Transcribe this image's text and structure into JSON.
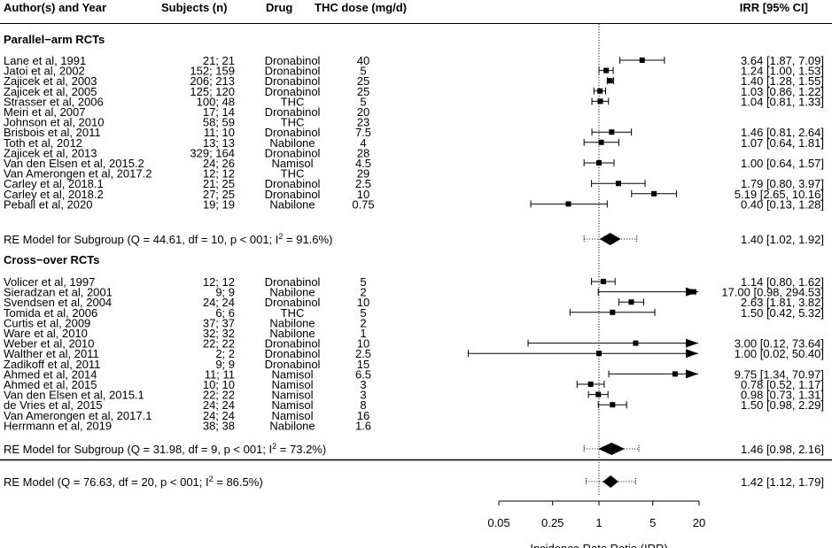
{
  "chart_data": {
    "type": "forest",
    "headers": {
      "study": "Author(s) and Year",
      "subjects": "Subjects (n)",
      "drug": "Drug",
      "dose": "THC dose (mg/d)",
      "estimate": "IRR [95% CI]"
    },
    "x_scale": "log",
    "reference_line": 1,
    "xlim": [
      0.05,
      20
    ],
    "x_ticks": [
      "0.05",
      "0.25",
      "1",
      "5",
      "20"
    ],
    "x_tick_values": [
      0.05,
      0.25,
      1,
      5,
      20
    ],
    "xlabel": "Incidence Rate Ratio (IRR)",
    "subgroups": [
      {
        "name": "Parallel−arm RCTs",
        "studies": [
          {
            "study": "Lane et al, 1991",
            "subjects": "21; 21",
            "drug": "Dronabinol",
            "dose": "40",
            "irr": 3.64,
            "lo": 1.87,
            "hi": 7.09,
            "label": "3.64 [1.87,  7.09]"
          },
          {
            "study": "Jatoi et al, 2002",
            "subjects": "152; 159",
            "drug": "Dronabinol",
            "dose": "5",
            "irr": 1.24,
            "lo": 1.0,
            "hi": 1.53,
            "label": "1.24 [1.00,  1.53]"
          },
          {
            "study": "Zajicek et al, 2003",
            "subjects": "206; 213",
            "drug": "Dronabinol",
            "dose": "25",
            "irr": 1.4,
            "lo": 1.28,
            "hi": 1.55,
            "label": "1.40 [1.28,  1.55]"
          },
          {
            "study": "Zajicek et al, 2005",
            "subjects": "125; 120",
            "drug": "Dronabinol",
            "dose": "25",
            "irr": 1.03,
            "lo": 0.86,
            "hi": 1.22,
            "label": "1.03 [0.86,  1.22]"
          },
          {
            "study": "Strasser et al, 2006",
            "subjects": "100; 48",
            "drug": "THC",
            "dose": "5",
            "irr": 1.04,
            "lo": 0.81,
            "hi": 1.33,
            "label": "1.04 [0.81,  1.33]"
          },
          {
            "study": "Meiri et al, 2007",
            "subjects": "17; 14",
            "drug": "Dronabinol",
            "dose": "20",
            "irr": null,
            "lo": null,
            "hi": null,
            "label": ""
          },
          {
            "study": "Johnson et al, 2010",
            "subjects": "58; 59",
            "drug": "THC",
            "dose": "23",
            "irr": null,
            "lo": null,
            "hi": null,
            "label": ""
          },
          {
            "study": "Brisbois et al, 2011",
            "subjects": "11; 10",
            "drug": "Dronabinol",
            "dose": "7.5",
            "irr": 1.46,
            "lo": 0.81,
            "hi": 2.64,
            "label": "1.46 [0.81,  2.64]"
          },
          {
            "study": "Toth et al, 2012",
            "subjects": "13; 13",
            "drug": "Nabilone",
            "dose": "4",
            "irr": 1.07,
            "lo": 0.64,
            "hi": 1.81,
            "label": "1.07 [0.64,  1.81]"
          },
          {
            "study": "Zajicek et al, 2013",
            "subjects": "329; 164",
            "drug": "Dronabinol",
            "dose": "28",
            "irr": null,
            "lo": null,
            "hi": null,
            "label": ""
          },
          {
            "study": "Van den Elsen et al, 2015.2",
            "subjects": "24; 26",
            "drug": "Namisol",
            "dose": "4.5",
            "irr": 1.0,
            "lo": 0.64,
            "hi": 1.57,
            "label": "1.00 [0.64,  1.57]"
          },
          {
            "study": "Van Amerongen et al, 2017.2",
            "subjects": "12; 12",
            "drug": "THC",
            "dose": "29",
            "irr": null,
            "lo": null,
            "hi": null,
            "label": ""
          },
          {
            "study": "Carley et al, 2018.1",
            "subjects": "21; 25",
            "drug": "Dronabinol",
            "dose": "2.5",
            "irr": 1.79,
            "lo": 0.8,
            "hi": 3.97,
            "label": "1.79 [0.80,  3.97]"
          },
          {
            "study": "Carley et al, 2018.2",
            "subjects": "27; 25",
            "drug": "Dronabinol",
            "dose": "10",
            "irr": 5.19,
            "lo": 2.65,
            "hi": 10.16,
            "label": "5.19 [2.65, 10.16]"
          },
          {
            "study": "Peball et al, 2020",
            "subjects": "19; 19",
            "drug": "Nabilone",
            "dose": "0.75",
            "irr": 0.4,
            "lo": 0.13,
            "hi": 1.28,
            "label": "0.40 [0.13,  1.28]"
          }
        ],
        "summary": {
          "label_text": "RE Model for Subgroup (Q = 44.61, df = 10, p < 001; I",
          "sup": "2",
          "tail": " = 91.6%)",
          "irr": 1.4,
          "lo": 1.02,
          "hi": 1.92,
          "pi_lo": 0.64,
          "pi_hi": 3.1,
          "estimate": "1.40 [1.02, 1.92]"
        }
      },
      {
        "name": "Cross−over RCTs",
        "studies": [
          {
            "study": "Volicer et al, 1997",
            "subjects": "12; 12",
            "drug": "Dronabinol",
            "dose": "5",
            "irr": 1.14,
            "lo": 0.8,
            "hi": 1.62,
            "label": "1.14 [0.80,  1.62]"
          },
          {
            "study": "Sieradzan et al, 2001",
            "subjects": "9; 9",
            "drug": "Nabilone",
            "dose": "2",
            "irr": 17.0,
            "lo": 0.98,
            "hi": 294.53,
            "label": "17.00 [0.98, 294.53]"
          },
          {
            "study": "Svendsen et al, 2004",
            "subjects": "24; 24",
            "drug": "Dronabinol",
            "dose": "10",
            "irr": 2.63,
            "lo": 1.81,
            "hi": 3.82,
            "label": "2.63 [1.81,  3.82]"
          },
          {
            "study": "Tomida et al, 2006",
            "subjects": "6; 6",
            "drug": "THC",
            "dose": "5",
            "irr": 1.5,
            "lo": 0.42,
            "hi": 5.32,
            "label": "1.50 [0.42,  5.32]"
          },
          {
            "study": "Curtis et al, 2009",
            "subjects": "37; 37",
            "drug": "Nabilone",
            "dose": "2",
            "irr": null,
            "lo": null,
            "hi": null,
            "label": ""
          },
          {
            "study": "Ware et al, 2010",
            "subjects": "32; 32",
            "drug": "Nabilone",
            "dose": "1",
            "irr": null,
            "lo": null,
            "hi": null,
            "label": ""
          },
          {
            "study": "Weber et al, 2010",
            "subjects": "22; 22",
            "drug": "Dronabinol",
            "dose": "10",
            "irr": 3.0,
            "lo": 0.12,
            "hi": 73.64,
            "label": "3.00 [0.12, 73.64]"
          },
          {
            "study": "Walther et al, 2011",
            "subjects": "2; 2",
            "drug": "Dronabinol",
            "dose": "2.5",
            "irr": 1.0,
            "lo": 0.02,
            "hi": 50.4,
            "label": "1.00 [0.02, 50.40]"
          },
          {
            "study": "Zadikoff et al, 2011",
            "subjects": "9; 9",
            "drug": "Dronabinol",
            "dose": "15",
            "irr": null,
            "lo": null,
            "hi": null,
            "label": ""
          },
          {
            "study": "Ahmed et al, 2014",
            "subjects": "11; 11",
            "drug": "Namisol",
            "dose": "6.5",
            "irr": 9.75,
            "lo": 1.34,
            "hi": 70.97,
            "label": "9.75 [1.34, 70.97]"
          },
          {
            "study": "Ahmed et al, 2015",
            "subjects": "10; 10",
            "drug": "Namisol",
            "dose": "3",
            "irr": 0.78,
            "lo": 0.52,
            "hi": 1.17,
            "label": "0.78 [0.52,  1.17]"
          },
          {
            "study": "Van den Elsen et al, 2015.1",
            "subjects": "22; 22",
            "drug": "Namisol",
            "dose": "3",
            "irr": 0.98,
            "lo": 0.73,
            "hi": 1.31,
            "label": "0.98 [0.73,  1.31]"
          },
          {
            "study": "de Vries et al, 2015",
            "subjects": "24; 24",
            "drug": "Namisol",
            "dose": "8",
            "irr": 1.5,
            "lo": 0.98,
            "hi": 2.29,
            "label": "1.50 [0.98,  2.29]"
          },
          {
            "study": "Van Amerongen et al, 2017.1",
            "subjects": "24; 24",
            "drug": "Namisol",
            "dose": "16",
            "irr": null,
            "lo": null,
            "hi": null,
            "label": ""
          },
          {
            "study": "Herrmann et al, 2019",
            "subjects": "38; 38",
            "drug": "Nabilone",
            "dose": "1.6",
            "irr": null,
            "lo": null,
            "hi": null,
            "label": ""
          }
        ],
        "summary": {
          "label_text": "RE Model for Subgroup (Q = 31.98, df = 9, p < 001; I",
          "sup": "2",
          "tail": " = 73.2%)",
          "irr": 1.46,
          "lo": 0.98,
          "hi": 2.16,
          "pi_lo": 0.64,
          "pi_hi": 3.3,
          "estimate": "1.46 [0.98, 2.16]"
        }
      }
    ],
    "overall": {
      "label_text": "RE Model (Q = 76.63, df = 20, p < 001; I",
      "sup": "2",
      "tail": " = 86.5%)",
      "irr": 1.42,
      "lo": 1.12,
      "hi": 1.79,
      "pi_lo": 0.68,
      "pi_hi": 3.0,
      "estimate": "1.42 [1.12, 1.79]"
    }
  }
}
